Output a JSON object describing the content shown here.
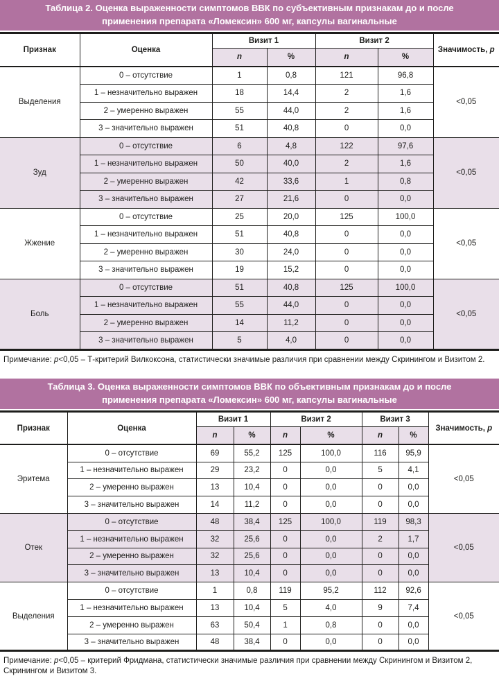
{
  "colors": {
    "title_bar_bg": "#b172a0",
    "title_text": "#ffffff",
    "shaded_row_bg": "#e9dfe9",
    "border": "#1d1d1b"
  },
  "tables": [
    {
      "id": "table2",
      "title": "Таблица 2. Оценка выраженности симптомов ВВК по субъективным признакам до и после применения препарата «Ломексин» 600 мг, капсулы вагинальные",
      "headers": {
        "sign": "Признак",
        "score": "Оценка",
        "visits": [
          "Визит 1",
          "Визит 2"
        ],
        "n": "n",
        "percent": "%",
        "significance_label": "Значимость,",
        "significance_p": "p"
      },
      "groups": [
        {
          "name": "Выделения",
          "shaded": false,
          "significance": "<0,05",
          "rows": [
            {
              "score": "0 – отсутствие",
              "values": [
                "1",
                "0,8",
                "121",
                "96,8"
              ]
            },
            {
              "score": "1 – незначительно выражен",
              "values": [
                "18",
                "14,4",
                "2",
                "1,6"
              ]
            },
            {
              "score": "2 – умеренно выражен",
              "values": [
                "55",
                "44,0",
                "2",
                "1,6"
              ]
            },
            {
              "score": "3 – значительно выражен",
              "values": [
                "51",
                "40,8",
                "0",
                "0,0"
              ]
            }
          ]
        },
        {
          "name": "Зуд",
          "shaded": true,
          "significance": "<0,05",
          "rows": [
            {
              "score": "0 – отсутствие",
              "values": [
                "6",
                "4,8",
                "122",
                "97,6"
              ]
            },
            {
              "score": "1 – незначительно выражен",
              "values": [
                "50",
                "40,0",
                "2",
                "1,6"
              ]
            },
            {
              "score": "2 – умеренно выражен",
              "values": [
                "42",
                "33,6",
                "1",
                "0,8"
              ]
            },
            {
              "score": "3 – значительно выражен",
              "values": [
                "27",
                "21,6",
                "0",
                "0,0"
              ]
            }
          ]
        },
        {
          "name": "Жжение",
          "shaded": false,
          "significance": "<0,05",
          "rows": [
            {
              "score": "0 – отсутствие",
              "values": [
                "25",
                "20,0",
                "125",
                "100,0"
              ]
            },
            {
              "score": "1 – незначительно выражен",
              "values": [
                "51",
                "40,8",
                "0",
                "0,0"
              ]
            },
            {
              "score": "2 – умеренно выражен",
              "values": [
                "30",
                "24,0",
                "0",
                "0,0"
              ]
            },
            {
              "score": "3 – значительно выражен",
              "values": [
                "19",
                "15,2",
                "0",
                "0,0"
              ]
            }
          ]
        },
        {
          "name": "Боль",
          "shaded": true,
          "significance": "<0,05",
          "rows": [
            {
              "score": "0 – отсутствие",
              "values": [
                "51",
                "40,8",
                "125",
                "100,0"
              ]
            },
            {
              "score": "1 – незначительно выражен",
              "values": [
                "55",
                "44,0",
                "0",
                "0,0"
              ]
            },
            {
              "score": "2 – умеренно выражен",
              "values": [
                "14",
                "11,2",
                "0",
                "0,0"
              ]
            },
            {
              "score": "3 – значительно выражен",
              "values": [
                "5",
                "4,0",
                "0",
                "0,0"
              ]
            }
          ]
        }
      ],
      "note": {
        "prefix": "Примечание: ",
        "p": "p",
        "rest": "<0,05 – Т-критерий Вилкоксона, статистически значимые различия при сравнении между Скринингом и Визитом 2."
      }
    },
    {
      "id": "table3",
      "title": "Таблица 3. Оценка выраженности симптомов ВВК по объективным признакам до и после применения препарата «Ломексин» 600 мг, капсулы вагинальные",
      "headers": {
        "sign": "Признак",
        "score": "Оценка",
        "visits": [
          "Визит 1",
          "Визит 2",
          "Визит 3"
        ],
        "n": "n",
        "percent": "%",
        "significance_label": "Значимость,",
        "significance_p": "p"
      },
      "groups": [
        {
          "name": "Эритема",
          "shaded": false,
          "significance": "<0,05",
          "rows": [
            {
              "score": "0 – отсутствие",
              "values": [
                "69",
                "55,2",
                "125",
                "100,0",
                "116",
                "95,9"
              ]
            },
            {
              "score": "1 – незначительно выражен",
              "values": [
                "29",
                "23,2",
                "0",
                "0,0",
                "5",
                "4,1"
              ]
            },
            {
              "score": "2 – умеренно выражен",
              "values": [
                "13",
                "10,4",
                "0",
                "0,0",
                "0",
                "0,0"
              ]
            },
            {
              "score": "3 – значительно выражен",
              "values": [
                "14",
                "11,2",
                "0",
                "0,0",
                "0",
                "0,0"
              ]
            }
          ]
        },
        {
          "name": "Отек",
          "shaded": true,
          "significance": "<0,05",
          "rows": [
            {
              "score": "0 – отсутствие",
              "values": [
                "48",
                "38,4",
                "125",
                "100,0",
                "119",
                "98,3"
              ]
            },
            {
              "score": "1 – незначительно выражен",
              "values": [
                "32",
                "25,6",
                "0",
                "0,0",
                "2",
                "1,7"
              ]
            },
            {
              "score": "2 – умеренно выражен",
              "values": [
                "32",
                "25,6",
                "0",
                "0,0",
                "0",
                "0,0"
              ]
            },
            {
              "score": "3 – значительно выражен",
              "values": [
                "13",
                "10,4",
                "0",
                "0,0",
                "0",
                "0,0"
              ]
            }
          ]
        },
        {
          "name": "Выделения",
          "shaded": false,
          "significance": "<0,05",
          "rows": [
            {
              "score": "0 – отсутствие",
              "values": [
                "1",
                "0,8",
                "119",
                "95,2",
                "112",
                "92,6"
              ]
            },
            {
              "score": "1 – незначительно выражен",
              "values": [
                "13",
                "10,4",
                "5",
                "4,0",
                "9",
                "7,4"
              ]
            },
            {
              "score": "2 – умеренно выражен",
              "values": [
                "63",
                "50,4",
                "1",
                "0,8",
                "0",
                "0,0"
              ]
            },
            {
              "score": "3 – значительно выражен",
              "values": [
                "48",
                "38,4",
                "0",
                "0,0",
                "0",
                "0,0"
              ]
            }
          ]
        }
      ],
      "note": {
        "prefix": "Примечание: ",
        "p": "p",
        "rest": "<0,05 – критерий Фридмана, статистически значимые различия при сравнении между Скринингом и Визитом 2, Скринингом и Визитом 3."
      }
    }
  ]
}
